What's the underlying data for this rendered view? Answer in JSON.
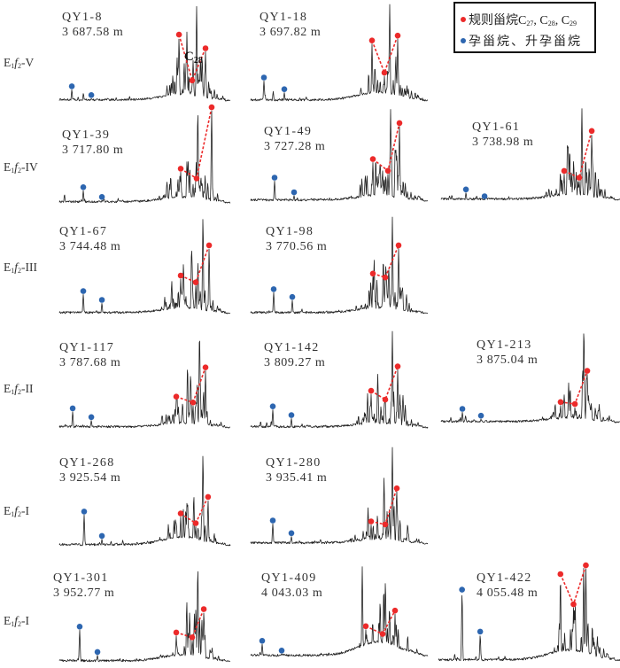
{
  "chart_data": {
    "type": "line",
    "title": "",
    "xlabel": "",
    "ylabel": "",
    "description": "Mass chromatograms of steranes per sample; x = relative retention (0-1), y = relative intensity (0-1)",
    "legend": {
      "placement": "top-right",
      "entries": [
        {
          "label": "规则甾烷C",
          "subs": [
            "27",
            "28",
            "29"
          ],
          "sep": ", ",
          "color": "#ec2a2a",
          "marker": "circle"
        },
        {
          "label": "孕甾烷、升孕甾烷",
          "color": "#2d66b0",
          "marker": "circle"
        }
      ]
    },
    "annotation": {
      "text": "C",
      "sub": "28",
      "panel": "QY1-8"
    },
    "row_labels": [
      {
        "base": "E",
        "sub1": "1",
        "italic": "f",
        "sub2": "2",
        "suffix": "-V"
      },
      {
        "base": "E",
        "sub1": "1",
        "italic": "f",
        "sub2": "2",
        "suffix": "-IV"
      },
      {
        "base": "E",
        "sub1": "1",
        "italic": "f",
        "sub2": "2",
        "suffix": "-III"
      },
      {
        "base": "E",
        "sub1": "1",
        "italic": "f",
        "sub2": "2",
        "suffix": "-II"
      },
      {
        "base": "E",
        "sub1": "1",
        "italic": "f",
        "sub2": "2",
        "suffix": "-I"
      },
      {
        "base": "E",
        "sub1": "1",
        "italic": "f",
        "sub2": "2",
        "suffix": "-I"
      }
    ],
    "colors": {
      "trace": "#222222",
      "regular_sterane": "#ec2a2a",
      "pregnane": "#2d66b0"
    },
    "panels": [
      {
        "sample": "QY1-8",
        "depth": "3 687.58 m",
        "row": 0,
        "col": 0,
        "pregnanes": [
          [
            0.073,
            0.16
          ],
          [
            0.187,
            0.07
          ]
        ],
        "steranes": [
          [
            0.7,
            0.69
          ],
          [
            0.777,
            0.22
          ],
          [
            0.855,
            0.55
          ]
        ],
        "max_peak": [
          0.803,
          0.98
        ],
        "hump": 0.06
      },
      {
        "sample": "QY1-18",
        "depth": "3 697.82 m",
        "row": 0,
        "col": 1,
        "pregnanes": [
          [
            0.075,
            0.25
          ],
          [
            0.19,
            0.13
          ]
        ],
        "steranes": [
          [
            0.685,
            0.63
          ],
          [
            0.755,
            0.3
          ],
          [
            0.83,
            0.68
          ]
        ],
        "max_peak": [
          0.785,
          1.0
        ],
        "hump": 0.08
      },
      {
        "sample": "QY1-39",
        "depth": "3 717.80 m",
        "row": 1,
        "col": 0,
        "pregnanes": [
          [
            0.14,
            0.17
          ],
          [
            0.249,
            0.07
          ]
        ],
        "steranes": [
          [
            0.71,
            0.36
          ],
          [
            0.803,
            0.26
          ],
          [
            0.891,
            0.99
          ]
        ],
        "max_peak": [
          0.81,
          0.95
        ],
        "hump": 0.05
      },
      {
        "sample": "QY1-49",
        "depth": "3 727.28 m",
        "row": 1,
        "col": 1,
        "pregnanes": [
          [
            0.135,
            0.25
          ],
          [
            0.245,
            0.1
          ]
        ],
        "steranes": [
          [
            0.69,
            0.44
          ],
          [
            0.775,
            0.32
          ],
          [
            0.84,
            0.81
          ]
        ],
        "max_peak": [
          0.79,
          0.95
        ],
        "hump": 0.05
      },
      {
        "sample": "QY1-61",
        "depth": "3 738.98 m",
        "row": 1,
        "col": 2,
        "pregnanes": [
          [
            0.139,
            0.12
          ],
          [
            0.243,
            0.05
          ]
        ],
        "steranes": [
          [
            0.688,
            0.31
          ],
          [
            0.772,
            0.24
          ],
          [
            0.842,
            0.72
          ]
        ],
        "max_peak": [
          0.787,
          0.95
        ],
        "hump": 0.05
      },
      {
        "sample": "QY1-67",
        "depth": "3 744.48 m",
        "row": 2,
        "col": 0,
        "pregnanes": [
          [
            0.14,
            0.24
          ],
          [
            0.249,
            0.15
          ]
        ],
        "steranes": [
          [
            0.71,
            0.4
          ],
          [
            0.798,
            0.33
          ],
          [
            0.876,
            0.71
          ]
        ],
        "max_peak": [
          0.84,
          1.0
        ],
        "hump": 0.05
      },
      {
        "sample": "QY1-98",
        "depth": "3 770.56 m",
        "row": 2,
        "col": 1,
        "pregnanes": [
          [
            0.13,
            0.26
          ],
          [
            0.235,
            0.18
          ]
        ],
        "steranes": [
          [
            0.69,
            0.42
          ],
          [
            0.76,
            0.38
          ],
          [
            0.835,
            0.71
          ]
        ],
        "max_peak": [
          0.8,
          1.0
        ],
        "hump": 0.05
      },
      {
        "sample": "QY1-117",
        "depth": "3 787.68 m",
        "row": 3,
        "col": 0,
        "pregnanes": [
          [
            0.078,
            0.21
          ],
          [
            0.187,
            0.12
          ]
        ],
        "steranes": [
          [
            0.684,
            0.33
          ],
          [
            0.782,
            0.27
          ],
          [
            0.855,
            0.63
          ]
        ],
        "max_peak": [
          0.82,
          0.99
        ],
        "hump": 0.04
      },
      {
        "sample": "QY1-142",
        "depth": "3 809.27 m",
        "row": 3,
        "col": 1,
        "pregnanes": [
          [
            0.125,
            0.23
          ],
          [
            0.23,
            0.14
          ]
        ],
        "steranes": [
          [
            0.68,
            0.39
          ],
          [
            0.76,
            0.3
          ],
          [
            0.83,
            0.64
          ]
        ],
        "max_peak": [
          0.8,
          1.0
        ],
        "hump": 0.04
      },
      {
        "sample": "QY1-213",
        "depth": "3 875.04 m",
        "row": 3,
        "col": 2,
        "pregnanes": [
          [
            0.119,
            0.15
          ],
          [
            0.223,
            0.08
          ]
        ],
        "steranes": [
          [
            0.668,
            0.22
          ],
          [
            0.748,
            0.2
          ],
          [
            0.817,
            0.54
          ]
        ],
        "max_peak": [
          0.798,
          0.98
        ],
        "hump": 0.04
      },
      {
        "sample": "QY1-268",
        "depth": "3 925.54 m",
        "row": 4,
        "col": 0,
        "pregnanes": [
          [
            0.145,
            0.36
          ],
          [
            0.249,
            0.11
          ]
        ],
        "steranes": [
          [
            0.71,
            0.34
          ],
          [
            0.798,
            0.24
          ],
          [
            0.87,
            0.51
          ]
        ],
        "max_peak": [
          0.84,
          0.95
        ],
        "hump": 0.08
      },
      {
        "sample": "QY1-280",
        "depth": "3 935.41 m",
        "row": 4,
        "col": 1,
        "pregnanes": [
          [
            0.125,
            0.25
          ],
          [
            0.23,
            0.12
          ]
        ],
        "steranes": [
          [
            0.68,
            0.24
          ],
          [
            0.76,
            0.21
          ],
          [
            0.825,
            0.58
          ]
        ],
        "max_peak": [
          0.8,
          1.0
        ],
        "hump": 0.04
      },
      {
        "sample": "QY1-301",
        "depth": "3 952.77 m",
        "row": 5,
        "col": 0,
        "pregnanes": [
          [
            0.119,
            0.37
          ],
          [
            0.223,
            0.11
          ]
        ],
        "steranes": [
          [
            0.684,
            0.31
          ],
          [
            0.777,
            0.26
          ],
          [
            0.845,
            0.55
          ]
        ],
        "max_peak": [
          0.81,
          0.98
        ],
        "hump": 0.06
      },
      {
        "sample": "QY1-409",
        "depth": "4 043.03 m",
        "row": 5,
        "col": 1,
        "pregnanes": [
          [
            0.065,
            0.17
          ],
          [
            0.175,
            0.07
          ]
        ],
        "steranes": [
          [
            0.65,
            0.32
          ],
          [
            0.745,
            0.24
          ],
          [
            0.815,
            0.48
          ]
        ],
        "max_peak": [
          0.63,
          0.93
        ],
        "hump": 0.14
      },
      {
        "sample": "QY1-422",
        "depth": "4 055.48 m",
        "row": 5,
        "col": 2,
        "pregnanes": [
          [
            0.13,
            0.74
          ],
          [
            0.23,
            0.31
          ]
        ],
        "steranes": [
          [
            0.672,
            0.9
          ],
          [
            0.744,
            0.59
          ],
          [
            0.812,
            0.99
          ]
        ],
        "max_peak": [
          0.8,
          0.96
        ],
        "hump": 0.1
      }
    ]
  }
}
